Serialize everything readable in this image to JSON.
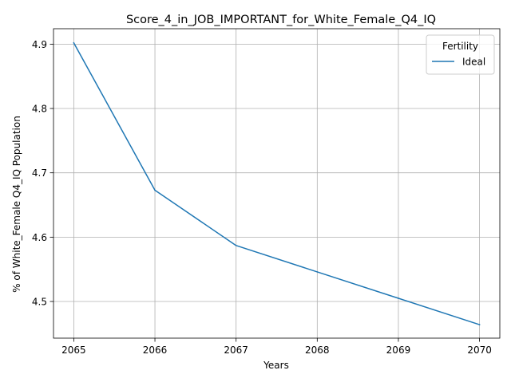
{
  "chart_data": {
    "type": "line",
    "title": "Score_4_in_JOB_IMPORTANT_for_White_Female_Q4_IQ",
    "xlabel": "Years",
    "ylabel": "% of White_Female Q4_IQ Population",
    "x": [
      2065,
      2066,
      2067,
      2068,
      2069,
      2070
    ],
    "x_ticks": [
      "2065",
      "2066",
      "2067",
      "2068",
      "2069",
      "2070"
    ],
    "y_ticks": [
      "4.5",
      "4.6",
      "4.7",
      "4.8",
      "4.9"
    ],
    "xlim": [
      2064.75,
      2070.25
    ],
    "ylim": [
      4.443,
      4.924
    ],
    "grid": true,
    "legend": {
      "title": "Fertility",
      "placement": "top-right"
    },
    "series": [
      {
        "name": "Ideal",
        "color": "#1f77b4",
        "values": [
          4.902,
          4.673,
          4.587,
          4.546,
          4.505,
          4.464
        ]
      }
    ]
  }
}
